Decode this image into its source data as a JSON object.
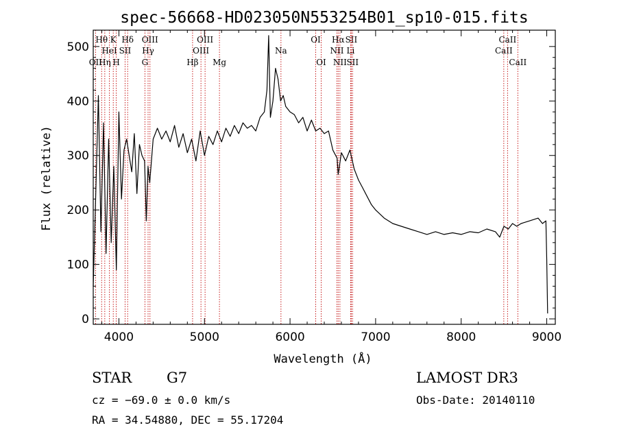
{
  "chart_data": {
    "type": "line",
    "title": "spec-56668-HD023050N553254B01_sp10-015.fits",
    "xlabel": "Wavelength (Å)",
    "ylabel": "Flux (relative)",
    "xlim": [
      3700,
      9100
    ],
    "ylim": [
      -10,
      530
    ],
    "xticks": [
      4000,
      5000,
      6000,
      7000,
      8000,
      9000
    ],
    "yticks": [
      0,
      100,
      200,
      300,
      400,
      500
    ],
    "series": [
      {
        "name": "flux",
        "x": [
          3700,
          3730,
          3760,
          3790,
          3820,
          3850,
          3880,
          3910,
          3940,
          3970,
          4000,
          4030,
          4060,
          4090,
          4120,
          4150,
          4180,
          4210,
          4240,
          4270,
          4300,
          4320,
          4340,
          4360,
          4400,
          4450,
          4500,
          4550,
          4600,
          4650,
          4700,
          4750,
          4800,
          4850,
          4900,
          4950,
          5000,
          5050,
          5100,
          5150,
          5200,
          5250,
          5300,
          5350,
          5400,
          5450,
          5500,
          5550,
          5600,
          5650,
          5700,
          5730,
          5750,
          5770,
          5800,
          5830,
          5860,
          5890,
          5920,
          5950,
          6000,
          6050,
          6100,
          6150,
          6200,
          6250,
          6300,
          6350,
          6400,
          6450,
          6500,
          6550,
          6563,
          6600,
          6650,
          6700,
          6750,
          6800,
          6850,
          6900,
          6950,
          7000,
          7100,
          7200,
          7300,
          7400,
          7500,
          7600,
          7700,
          7800,
          7900,
          8000,
          8100,
          8200,
          8300,
          8400,
          8450,
          8500,
          8550,
          8600,
          8650,
          8700,
          8800,
          8900,
          8950,
          8990,
          9000,
          9010
        ],
        "values": [
          60,
          230,
          410,
          160,
          360,
          120,
          330,
          140,
          280,
          90,
          380,
          220,
          310,
          330,
          300,
          270,
          340,
          230,
          320,
          300,
          290,
          180,
          280,
          250,
          330,
          350,
          330,
          345,
          325,
          355,
          315,
          340,
          305,
          330,
          290,
          345,
          300,
          335,
          320,
          345,
          325,
          350,
          335,
          355,
          340,
          360,
          350,
          355,
          345,
          370,
          380,
          420,
          520,
          370,
          400,
          460,
          440,
          400,
          410,
          390,
          380,
          375,
          360,
          370,
          345,
          365,
          345,
          350,
          340,
          345,
          310,
          295,
          265,
          305,
          290,
          310,
          275,
          255,
          240,
          225,
          210,
          200,
          185,
          175,
          170,
          165,
          160,
          155,
          160,
          155,
          158,
          155,
          160,
          158,
          165,
          160,
          150,
          170,
          165,
          175,
          170,
          175,
          180,
          185,
          175,
          180,
          110,
          10
        ]
      }
    ],
    "lines": [
      {
        "label": "Hθ",
        "wave": 3798,
        "row": 1
      },
      {
        "label": "OII",
        "wave": 3727,
        "row": 3
      },
      {
        "label": "Hη",
        "wave": 3835,
        "row": 3
      },
      {
        "label": "HeI",
        "wave": 3889,
        "row": 2
      },
      {
        "label": "K",
        "wave": 3934,
        "row": 1
      },
      {
        "label": "H",
        "wave": 3969,
        "row": 3
      },
      {
        "label": "SII",
        "wave": 4072,
        "row": 2
      },
      {
        "label": "Hδ",
        "wave": 4102,
        "row": 1
      },
      {
        "label": "G",
        "wave": 4304,
        "row": 3
      },
      {
        "label": "Hγ",
        "wave": 4341,
        "row": 2
      },
      {
        "label": "OIII",
        "wave": 4363,
        "row": 1
      },
      {
        "label": "Hβ",
        "wave": 4861,
        "row": 3
      },
      {
        "label": "OIII",
        "wave": 4959,
        "row": 2
      },
      {
        "label": "OIII",
        "wave": 5007,
        "row": 1
      },
      {
        "label": "Mg",
        "wave": 5175,
        "row": 3
      },
      {
        "label": "Na",
        "wave": 5894,
        "row": 2
      },
      {
        "label": "OI",
        "wave": 6300,
        "row": 1
      },
      {
        "label": "OI",
        "wave": 6364,
        "row": 3
      },
      {
        "label": "NII",
        "wave": 6548,
        "row": 2
      },
      {
        "label": "Hα",
        "wave": 6563,
        "row": 1
      },
      {
        "label": "NII",
        "wave": 6583,
        "row": 3
      },
      {
        "label": "Li",
        "wave": 6708,
        "row": 2
      },
      {
        "label": "SII",
        "wave": 6716,
        "row": 1
      },
      {
        "label": "SII",
        "wave": 6731,
        "row": 3
      },
      {
        "label": "CaII",
        "wave": 8498,
        "row": 2
      },
      {
        "label": "CaII",
        "wave": 8542,
        "row": 1
      },
      {
        "label": "CaII",
        "wave": 8662,
        "row": 3
      }
    ]
  },
  "info": {
    "object_class": "STAR",
    "subclass": "G7",
    "survey": "LAMOST DR3",
    "cz": "cz = −69.0 ± 0.0 km/s",
    "obs_date": "Obs-Date: 20140110",
    "coords": "RA =  34.54880, DEC =  55.17204"
  }
}
